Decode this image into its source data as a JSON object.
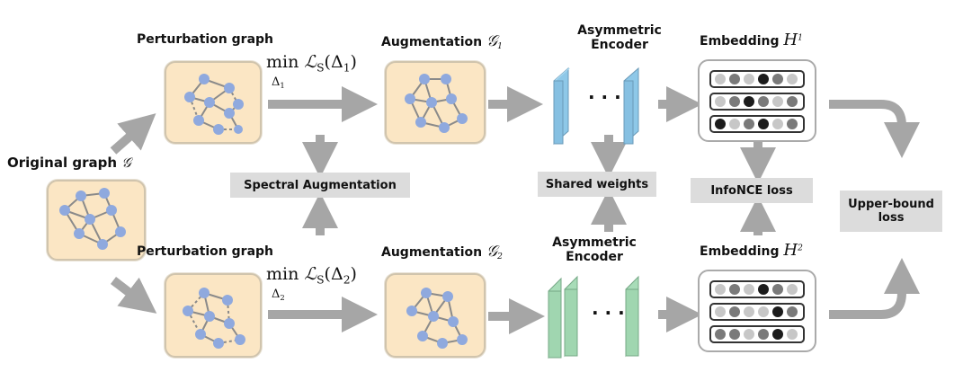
{
  "original": {
    "label": "Original graph",
    "symbol": "𝒢"
  },
  "top": {
    "perturb_label": "Perturbation graph",
    "minimize": "min",
    "delta_sub": "Δ",
    "delta_sub_idx": "1",
    "loss": "ℒ",
    "loss_sub": "S",
    "arg": "(Δ",
    "arg_idx": "1",
    "arg_close": ")",
    "aug_label": "Augmentation",
    "aug_symbol": "𝒢",
    "aug_idx": "1",
    "encoder_line1": "Asymmetric",
    "encoder_line2": "Encoder",
    "emb_label": "Embedding",
    "emb_symbol": "H",
    "emb_idx": "1"
  },
  "bottom": {
    "perturb_label": "Perturbation graph",
    "minimize": "min",
    "delta_sub": "Δ",
    "delta_sub_idx": "2",
    "loss": "ℒ",
    "loss_sub": "S",
    "arg": "(Δ",
    "arg_idx": "2",
    "arg_close": ")",
    "aug_label": "Augmentation",
    "aug_symbol": "𝒢",
    "aug_idx": "2",
    "encoder_line1": "Asymmetric",
    "encoder_line2": "Encoder",
    "emb_label": "Embedding",
    "emb_symbol": "H",
    "emb_idx": "2"
  },
  "boxes": {
    "spectral": "Spectral Augmentation",
    "shared": "Shared weights",
    "infonce": "InfoNCE loss",
    "upper_line1": "Upper-bound",
    "upper_line2": "loss"
  },
  "ellipsis": "· · ·",
  "colors": {
    "graph_bg": "#fbe6c4",
    "node": "#8fa9de",
    "encoder_blue": "#8ec8e8",
    "encoder_green": "#a8dcb8",
    "arrow": "#a6a6a6",
    "label_box": "#dcdcdc"
  },
  "embeddings": {
    "top": [
      [
        "#c7c7c7",
        "#7a7a7a",
        "#c7c7c7",
        "#1c1c1c",
        "#7a7a7a",
        "#c7c7c7"
      ],
      [
        "#c7c7c7",
        "#7a7a7a",
        "#1c1c1c",
        "#7a7a7a",
        "#c7c7c7",
        "#7a7a7a"
      ],
      [
        "#1c1c1c",
        "#c7c7c7",
        "#7a7a7a",
        "#1c1c1c",
        "#c7c7c7",
        "#7a7a7a"
      ]
    ],
    "bottom": [
      [
        "#c7c7c7",
        "#7a7a7a",
        "#c7c7c7",
        "#1c1c1c",
        "#7a7a7a",
        "#c7c7c7"
      ],
      [
        "#c7c7c7",
        "#7a7a7a",
        "#c7c7c7",
        "#c7c7c7",
        "#1c1c1c",
        "#7a7a7a"
      ],
      [
        "#7a7a7a",
        "#7a7a7a",
        "#c7c7c7",
        "#7a7a7a",
        "#1c1c1c",
        "#c7c7c7"
      ]
    ]
  }
}
